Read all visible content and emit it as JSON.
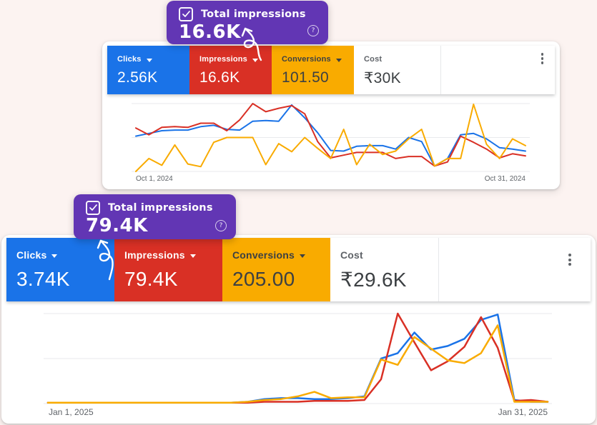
{
  "colors": {
    "page_bg": "#fcf3f1",
    "card_bg": "#ffffff",
    "badge_purple": "#6236b4",
    "clicks_blue": "#1a73e8",
    "impressions_red": "#d93025",
    "conversions_yellow": "#f9ab00",
    "gridline": "#e8eaed",
    "axis_text": "#5f6368",
    "dark_text": "#3c4043"
  },
  "callouts": [
    {
      "label": "Total impressions",
      "value": "16.6K",
      "checkbox_checked": true,
      "help_glyph": "?"
    },
    {
      "label": "Total impressions",
      "value": "79.4K",
      "checkbox_checked": true,
      "help_glyph": "?"
    }
  ],
  "panels": [
    {
      "metrics": [
        {
          "label": "Clicks",
          "value": "2.56K",
          "color": "#1a73e8",
          "label_color": "#ffffff",
          "value_color": "#ffffff",
          "has_dropdown": true
        },
        {
          "label": "Impressions",
          "value": "16.6K",
          "color": "#d93025",
          "label_color": "#ffffff",
          "value_color": "#ffffff",
          "has_dropdown": true
        },
        {
          "label": "Conversions",
          "value": "101.50",
          "color": "#f9ab00",
          "label_color": "#3c4043",
          "value_color": "#3c4043",
          "has_dropdown": true
        },
        {
          "label": "Cost",
          "value": "₹30K",
          "color": "#ffffff",
          "label_color": "#5f6368",
          "value_color": "#3c4043",
          "has_dropdown": false
        }
      ],
      "chart_data": {
        "type": "line",
        "x_start_label": "Oct 1, 2024",
        "x_end_label": "Oct 31, 2024",
        "x_unit": "day of month (Oct 1–31, 2024, 31 evenly spaced points)",
        "y_note": "no y-axis labels shown; values are percent of plot height between bottom and top gridline",
        "ylim": [
          0,
          100
        ],
        "grid": "3 horizontal gridlines, no legend",
        "series": [
          {
            "name": "Clicks",
            "color": "#1a73e8",
            "values": [
              52,
              56,
              60,
              61,
              61,
              66,
              68,
              62,
              61,
              74,
              75,
              74,
              98,
              79,
              57,
              31,
              30,
              37,
              38,
              38,
              33,
              50,
              44,
              8,
              19,
              54,
              56,
              48,
              35,
              33,
              30
            ]
          },
          {
            "name": "Impressions",
            "color": "#d93025",
            "values": [
              64,
              54,
              65,
              66,
              65,
              71,
              71,
              60,
              76,
              100,
              88,
              93,
              97,
              85,
              44,
              20,
              24,
              28,
              28,
              28,
              19,
              22,
              22,
              8,
              14,
              52,
              43,
              33,
              20,
              26,
              23
            ]
          },
          {
            "name": "Conversions",
            "color": "#f9ab00",
            "values": [
              0,
              19,
              9,
              39,
              11,
              7,
              43,
              50,
              50,
              50,
              10,
              41,
              29,
              50,
              34,
              19,
              62,
              10,
              40,
              25,
              30,
              48,
              62,
              8,
              19,
              19,
              99,
              40,
              19,
              48,
              38
            ]
          }
        ]
      }
    },
    {
      "metrics": [
        {
          "label": "Clicks",
          "value": "3.74K",
          "color": "#1a73e8",
          "label_color": "#ffffff",
          "value_color": "#ffffff",
          "has_dropdown": true
        },
        {
          "label": "Impressions",
          "value": "79.4K",
          "color": "#d93025",
          "label_color": "#ffffff",
          "value_color": "#ffffff",
          "has_dropdown": true
        },
        {
          "label": "Conversions",
          "value": "205.00",
          "color": "#f9ab00",
          "label_color": "#3c4043",
          "value_color": "#3c4043",
          "has_dropdown": true
        },
        {
          "label": "Cost",
          "value": "₹29.6K",
          "color": "#ffffff",
          "label_color": "#5f6368",
          "value_color": "#3c4043",
          "has_dropdown": false
        }
      ],
      "chart_data": {
        "type": "line",
        "x_start_label": "Jan 1, 2025",
        "x_end_label": "Jan 31, 2025",
        "x_unit": "day of month (Jan 1–31, 2025, 31 evenly spaced points)",
        "y_note": "no y-axis labels shown; values are percent of plot height between bottom and top gridline",
        "ylim": [
          0,
          100
        ],
        "grid": "3 horizontal gridlines, no legend",
        "series": [
          {
            "name": "Clicks",
            "color": "#1a73e8",
            "values": [
              1,
              1,
              1,
              1,
              1,
              1,
              1,
              1,
              1,
              1,
              1,
              1,
              2,
              5,
              6,
              6,
              5,
              5,
              6,
              8,
              50,
              56,
              79,
              60,
              64,
              72,
              93,
              99,
              4,
              2,
              2
            ]
          },
          {
            "name": "Impressions",
            "color": "#d93025",
            "values": [
              1,
              1,
              1,
              1,
              1,
              1,
              1,
              1,
              1,
              1,
              1,
              1,
              1,
              2,
              2,
              2,
              3,
              3,
              3,
              4,
              27,
              100,
              68,
              37,
              47,
              63,
              96,
              62,
              3,
              4,
              2
            ]
          },
          {
            "name": "Conversions",
            "color": "#f9ab00",
            "values": [
              1,
              1,
              1,
              1,
              1,
              1,
              1,
              1,
              1,
              1,
              1,
              1,
              2,
              4,
              5,
              8,
              13,
              6,
              7,
              7,
              49,
              43,
              74,
              61,
              48,
              45,
              56,
              87,
              2,
              2,
              2
            ]
          }
        ]
      }
    }
  ]
}
